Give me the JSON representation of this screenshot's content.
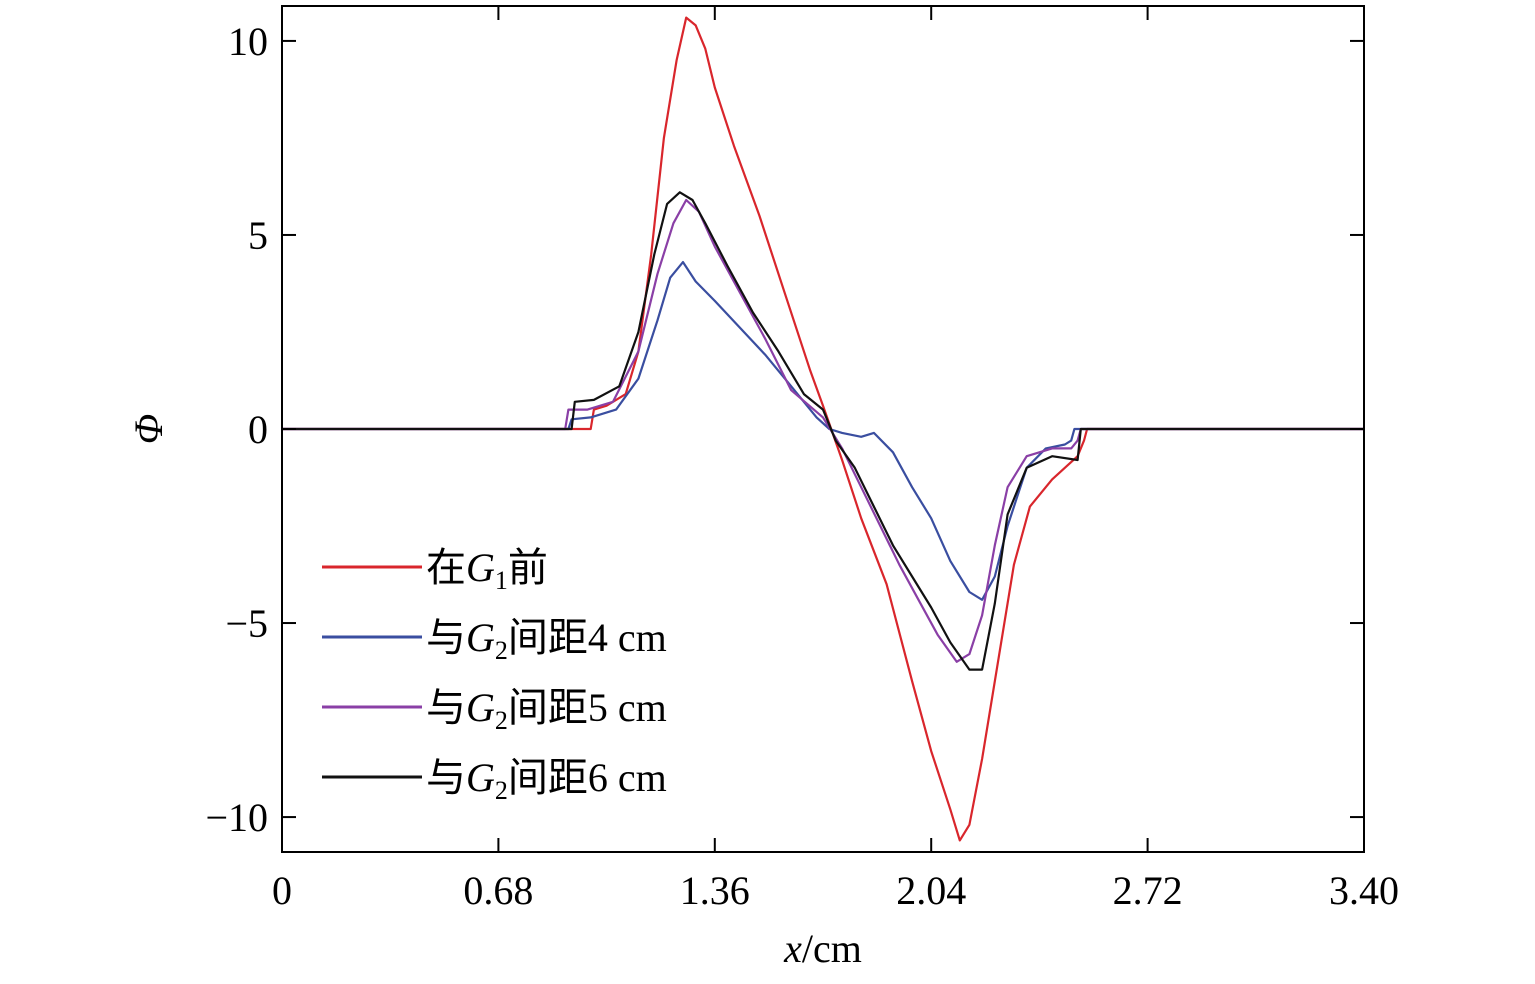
{
  "chart_data": {
    "type": "line",
    "xlabel": "x/cm",
    "xlabel_italic": "x",
    "xlabel_unit": "/cm",
    "ylabel": "Φ",
    "xlim": [
      0,
      3.4
    ],
    "ylim": [
      -10.9,
      10.9
    ],
    "x_ticks": [
      "0",
      "0.68",
      "1.36",
      "2.04",
      "2.72",
      "3.40"
    ],
    "x_tick_values": [
      0,
      0.68,
      1.36,
      2.04,
      2.72,
      3.4
    ],
    "y_ticks": [
      "10",
      "5",
      "0",
      "−5",
      "−10"
    ],
    "y_tick_values": [
      10,
      5,
      0,
      -5,
      -10
    ],
    "grid": false,
    "legend_position": "lower-left",
    "series": [
      {
        "name": "在G1前",
        "name_parts": {
          "pre": "在",
          "italic": "G",
          "sub": "1",
          "post": "前"
        },
        "color": "#d9262c",
        "points": [
          [
            0,
            0
          ],
          [
            0.96,
            0
          ],
          [
            0.97,
            0
          ],
          [
            0.98,
            0.5
          ],
          [
            1.02,
            0.6
          ],
          [
            1.08,
            0.9
          ],
          [
            1.12,
            2.0
          ],
          [
            1.16,
            4.5
          ],
          [
            1.2,
            7.5
          ],
          [
            1.24,
            9.5
          ],
          [
            1.27,
            10.6
          ],
          [
            1.3,
            10.4
          ],
          [
            1.33,
            9.8
          ],
          [
            1.36,
            8.8
          ],
          [
            1.42,
            7.3
          ],
          [
            1.5,
            5.5
          ],
          [
            1.58,
            3.5
          ],
          [
            1.66,
            1.5
          ],
          [
            1.7,
            0.6
          ],
          [
            1.76,
            -0.8
          ],
          [
            1.82,
            -2.3
          ],
          [
            1.9,
            -4.0
          ],
          [
            1.98,
            -6.5
          ],
          [
            2.04,
            -8.3
          ],
          [
            2.1,
            -9.8
          ],
          [
            2.13,
            -10.6
          ],
          [
            2.16,
            -10.2
          ],
          [
            2.2,
            -8.5
          ],
          [
            2.25,
            -6.0
          ],
          [
            2.3,
            -3.5
          ],
          [
            2.35,
            -2.0
          ],
          [
            2.42,
            -1.3
          ],
          [
            2.5,
            -0.7
          ],
          [
            2.52,
            -0.3
          ],
          [
            2.53,
            0
          ],
          [
            3.4,
            0
          ]
        ]
      },
      {
        "name": "与G2间距4 cm",
        "name_parts": {
          "pre": "与",
          "italic": "G",
          "sub": "2",
          "post": "间距4 cm"
        },
        "color": "#3a4ea0",
        "points": [
          [
            0,
            0
          ],
          [
            0.9,
            0
          ],
          [
            0.91,
            0.25
          ],
          [
            0.97,
            0.3
          ],
          [
            1.05,
            0.5
          ],
          [
            1.12,
            1.3
          ],
          [
            1.18,
            2.8
          ],
          [
            1.22,
            3.9
          ],
          [
            1.26,
            4.3
          ],
          [
            1.3,
            3.8
          ],
          [
            1.36,
            3.3
          ],
          [
            1.44,
            2.6
          ],
          [
            1.52,
            1.9
          ],
          [
            1.6,
            1.1
          ],
          [
            1.68,
            0.3
          ],
          [
            1.72,
            0
          ],
          [
            1.76,
            -0.1
          ],
          [
            1.82,
            -0.2
          ],
          [
            1.86,
            -0.1
          ],
          [
            1.92,
            -0.6
          ],
          [
            1.98,
            -1.5
          ],
          [
            2.04,
            -2.3
          ],
          [
            2.1,
            -3.4
          ],
          [
            2.16,
            -4.2
          ],
          [
            2.2,
            -4.4
          ],
          [
            2.24,
            -3.8
          ],
          [
            2.28,
            -2.5
          ],
          [
            2.34,
            -1.0
          ],
          [
            2.4,
            -0.5
          ],
          [
            2.46,
            -0.4
          ],
          [
            2.48,
            -0.3
          ],
          [
            2.49,
            0
          ],
          [
            3.4,
            0
          ]
        ]
      },
      {
        "name": "与G2间距5 cm",
        "name_parts": {
          "pre": "与",
          "italic": "G",
          "sub": "2",
          "post": "间距5 cm"
        },
        "color": "#8a3fa6",
        "points": [
          [
            0,
            0
          ],
          [
            0.89,
            0
          ],
          [
            0.9,
            0.5
          ],
          [
            0.96,
            0.5
          ],
          [
            1.04,
            0.7
          ],
          [
            1.12,
            2.0
          ],
          [
            1.18,
            4.0
          ],
          [
            1.23,
            5.3
          ],
          [
            1.27,
            5.9
          ],
          [
            1.31,
            5.6
          ],
          [
            1.36,
            4.7
          ],
          [
            1.44,
            3.5
          ],
          [
            1.52,
            2.3
          ],
          [
            1.6,
            1.0
          ],
          [
            1.7,
            0.3
          ],
          [
            1.76,
            -0.5
          ],
          [
            1.82,
            -1.5
          ],
          [
            1.88,
            -2.5
          ],
          [
            1.94,
            -3.5
          ],
          [
            2.0,
            -4.4
          ],
          [
            2.06,
            -5.3
          ],
          [
            2.12,
            -6.0
          ],
          [
            2.16,
            -5.8
          ],
          [
            2.2,
            -4.8
          ],
          [
            2.24,
            -3.0
          ],
          [
            2.28,
            -1.5
          ],
          [
            2.34,
            -0.7
          ],
          [
            2.42,
            -0.5
          ],
          [
            2.48,
            -0.5
          ],
          [
            2.5,
            -0.3
          ],
          [
            2.51,
            0
          ],
          [
            3.4,
            0
          ]
        ]
      },
      {
        "name": "与G2间距6 cm",
        "name_parts": {
          "pre": "与",
          "italic": "G",
          "sub": "2",
          "post": "间距6 cm"
        },
        "color": "#111111",
        "points": [
          [
            0,
            0
          ],
          [
            0.91,
            0
          ],
          [
            0.92,
            0.7
          ],
          [
            0.98,
            0.75
          ],
          [
            1.06,
            1.1
          ],
          [
            1.12,
            2.5
          ],
          [
            1.17,
            4.5
          ],
          [
            1.21,
            5.8
          ],
          [
            1.25,
            6.1
          ],
          [
            1.29,
            5.9
          ],
          [
            1.33,
            5.3
          ],
          [
            1.4,
            4.2
          ],
          [
            1.48,
            3.0
          ],
          [
            1.56,
            2.0
          ],
          [
            1.64,
            0.9
          ],
          [
            1.7,
            0.5
          ],
          [
            1.74,
            -0.3
          ],
          [
            1.8,
            -1.0
          ],
          [
            1.86,
            -2.0
          ],
          [
            1.92,
            -3.0
          ],
          [
            1.98,
            -3.8
          ],
          [
            2.04,
            -4.6
          ],
          [
            2.1,
            -5.5
          ],
          [
            2.16,
            -6.2
          ],
          [
            2.2,
            -6.2
          ],
          [
            2.24,
            -4.5
          ],
          [
            2.28,
            -2.2
          ],
          [
            2.34,
            -1.0
          ],
          [
            2.42,
            -0.7
          ],
          [
            2.5,
            -0.8
          ],
          [
            2.51,
            0
          ],
          [
            3.4,
            0
          ]
        ]
      }
    ]
  }
}
